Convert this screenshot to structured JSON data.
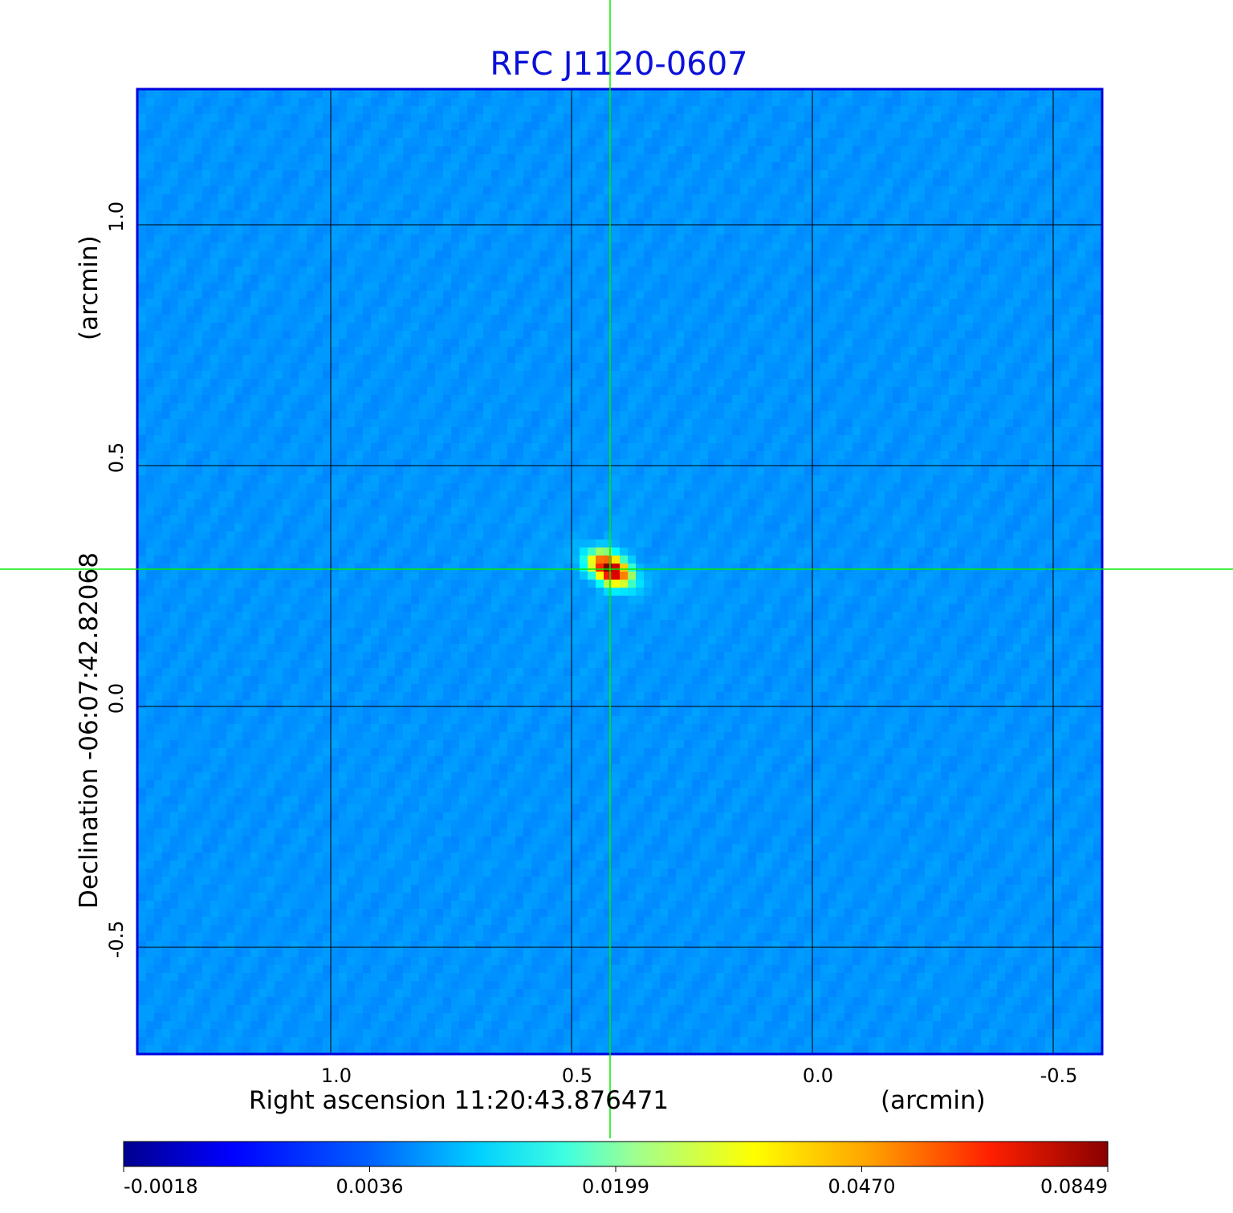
{
  "chart_data": {
    "type": "heatmap",
    "title": "RFC J1120-0607",
    "xlabel": "Right ascension  11:20:43.876471",
    "xunit": "(arcmin)",
    "ylabel": "Declination  -06:07:42.82068",
    "yunit": "(arcmin)",
    "x_range": [
      1.4,
      -0.6
    ],
    "y_range": [
      -0.72,
      1.28
    ],
    "x_ticks": [
      "1.0",
      "0.5",
      "0.0",
      "-0.5"
    ],
    "x_tick_values": [
      1.0,
      0.5,
      0.0,
      -0.5
    ],
    "y_ticks": [
      "1.0",
      "0.5",
      "0.0",
      "-0.5"
    ],
    "y_tick_values": [
      1.0,
      0.5,
      0.0,
      -0.5
    ],
    "grid": true,
    "colormap": "jet",
    "colorbar": {
      "labels": [
        "-0.0018",
        "0.0036",
        "0.0199",
        "0.0470",
        "0.0849"
      ],
      "values": [
        -0.0018,
        0.0036,
        0.0199,
        0.047,
        0.0849
      ]
    },
    "peak": {
      "x": 0.42,
      "y": 0.285,
      "value": 0.0849
    },
    "crosshair": {
      "x": 0.42,
      "y": 0.285,
      "color": "#00ee00"
    },
    "background_level": 0.0012
  },
  "colors": {
    "title": "#0a10d8",
    "frame": "#0000dd",
    "grid": "#000000",
    "crosshair": "#00ee00"
  }
}
